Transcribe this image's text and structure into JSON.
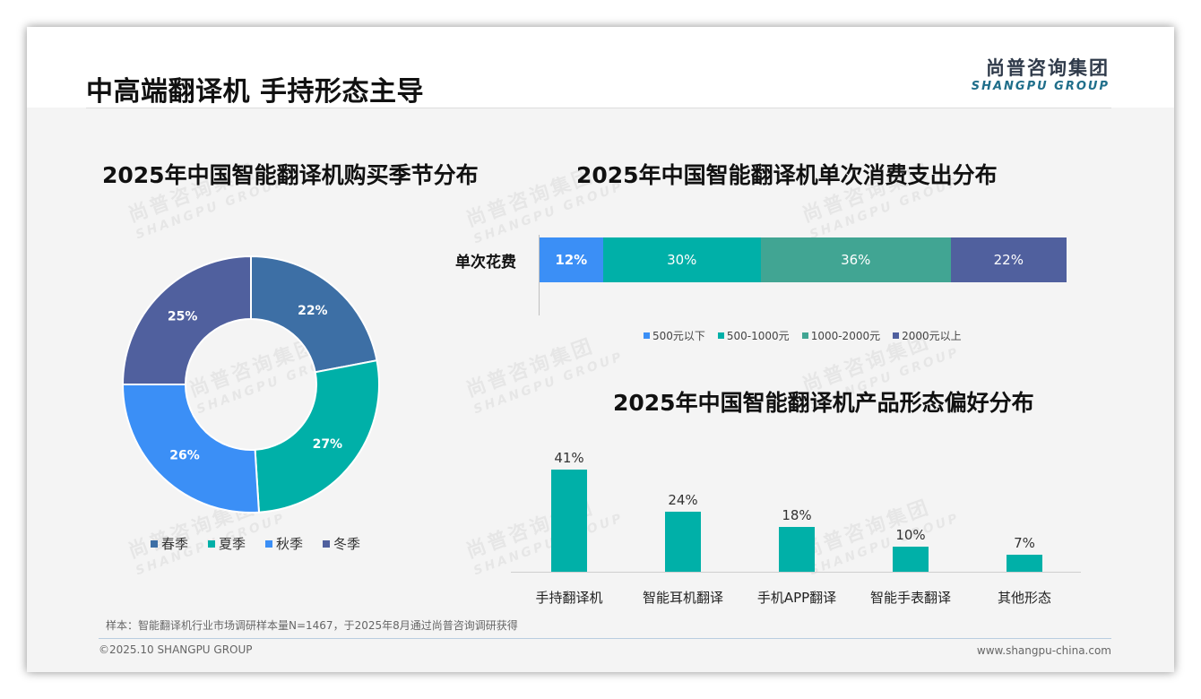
{
  "header": {
    "title": "中高端翻译机 手持形态主导",
    "logo_cn": "尚普咨询集团",
    "logo_en": "SHANGPU GROUP"
  },
  "watermark": {
    "cn": "尚普咨询集团",
    "en": "SHANGPU GROUP"
  },
  "footer": {
    "source": "样本：智能翻译机行业市场调研样本量N=1467，于2025年8月通过尚普咨询调研获得",
    "copyright": "©2025.10 SHANGPU GROUP",
    "website": "www.shangpu-china.com"
  },
  "chart_data": [
    {
      "type": "pie",
      "title": "2025年中国智能翻译机购买季节分布",
      "categories": [
        "春季",
        "夏季",
        "秋季",
        "冬季"
      ],
      "values": [
        22,
        27,
        26,
        25
      ],
      "labels": [
        "22%",
        "27%",
        "26%",
        "25%"
      ],
      "colors": [
        "#3d6fa5",
        "#00b0a8",
        "#3b8ff6",
        "#50609e"
      ],
      "legend": "bottom"
    },
    {
      "type": "bar",
      "orientation": "horizontal-stacked",
      "title": "2025年中国智能翻译机单次消费支出分布",
      "categories": [
        "单次花费"
      ],
      "series": [
        {
          "name": "500元以下",
          "values": [
            12
          ],
          "label": "12%",
          "color": "#3b8ff6"
        },
        {
          "name": "500-1000元",
          "values": [
            30
          ],
          "label": "30%",
          "color": "#00b0a8"
        },
        {
          "name": "1000-2000元",
          "values": [
            36
          ],
          "label": "36%",
          "color": "#41a593"
        },
        {
          "name": "2000元以上",
          "values": [
            22
          ],
          "label": "22%",
          "color": "#50609e"
        }
      ],
      "legend": "bottom"
    },
    {
      "type": "bar",
      "title": "2025年中国智能翻译机产品形态偏好分布",
      "categories": [
        "手持翻译机",
        "智能耳机翻译",
        "手机APP翻译",
        "智能手表翻译",
        "其他形态"
      ],
      "values": [
        41,
        24,
        18,
        10,
        7
      ],
      "labels": [
        "41%",
        "24%",
        "18%",
        "10%",
        "7%"
      ],
      "color": "#00b0a8",
      "ylim": [
        0,
        45
      ]
    }
  ]
}
